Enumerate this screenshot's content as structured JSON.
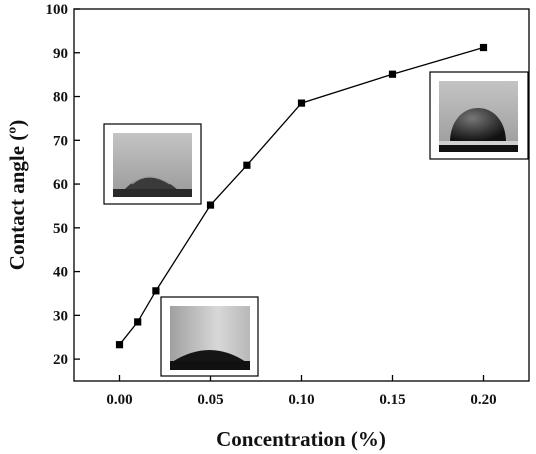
{
  "chart_data": {
    "type": "scatter",
    "xlabel": "Concentration (%)",
    "ylabel": "Contact angle (º)",
    "xlim": [
      -0.025,
      0.225
    ],
    "ylim": [
      15,
      100
    ],
    "x_ticks": [
      0.0,
      0.05,
      0.1,
      0.15,
      0.2
    ],
    "x_tick_labels": [
      "0.00",
      "0.05",
      "0.10",
      "0.15",
      "0.20"
    ],
    "y_ticks": [
      20,
      30,
      40,
      50,
      60,
      70,
      80,
      90,
      100
    ],
    "y_tick_labels": [
      "20",
      "30",
      "40",
      "50",
      "60",
      "70",
      "80",
      "90",
      "100"
    ],
    "grid": false,
    "series": [
      {
        "marker": "square",
        "connected": true,
        "color": "#000000",
        "points": [
          {
            "x": 0.0,
            "y": 23.3
          },
          {
            "x": 0.01,
            "y": 28.5
          },
          {
            "x": 0.02,
            "y": 35.6
          },
          {
            "x": 0.05,
            "y": 55.2
          },
          {
            "x": 0.07,
            "y": 64.3
          },
          {
            "x": 0.1,
            "y": 78.5
          },
          {
            "x": 0.15,
            "y": 85.1
          },
          {
            "x": 0.2,
            "y": 91.2
          }
        ]
      }
    ],
    "insets": [
      {
        "name": "droplet-low-angle",
        "depicts": "flat water droplet photo"
      },
      {
        "name": "droplet-medium-angle",
        "depicts": "spreading droplet photo"
      },
      {
        "name": "droplet-high-angle",
        "depicts": "spherical droplet photo"
      }
    ]
  }
}
